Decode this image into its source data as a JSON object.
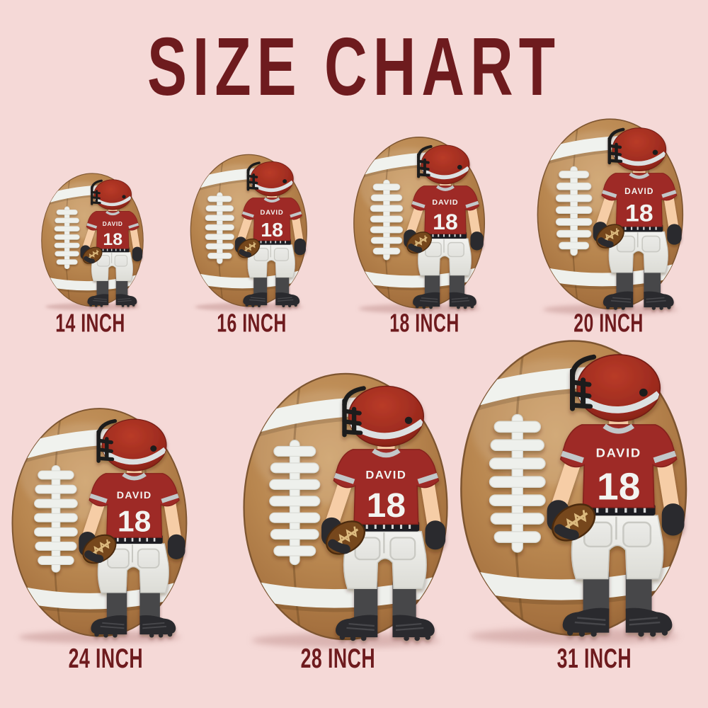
{
  "title": "SIZE CHART",
  "player": {
    "name": "DAVID",
    "number": "18"
  },
  "sizes": [
    {
      "id": "14-inch",
      "label": "14 INCH",
      "inches": 14,
      "row": 1
    },
    {
      "id": "16-inch",
      "label": "16 INCH",
      "inches": 16,
      "row": 1
    },
    {
      "id": "18-inch",
      "label": "18 INCH",
      "inches": 18,
      "row": 1
    },
    {
      "id": "20-inch",
      "label": "20 INCH",
      "inches": 20,
      "row": 1
    },
    {
      "id": "24-inch",
      "label": "24 INCH",
      "inches": 24,
      "row": 2
    },
    {
      "id": "28-inch",
      "label": "28 INCH",
      "inches": 28,
      "row": 2
    },
    {
      "id": "31-inch",
      "label": "31 INCH",
      "inches": 31,
      "row": 2
    }
  ],
  "colors": {
    "background": "#f5d9d7",
    "heading_text": "#6e1b1e",
    "ball_brown": "#b8864f",
    "stripe_lace_white": "#eef0ec",
    "jersey_red": "#9e2c27",
    "helmet_red": "#9c2a1e",
    "pants_white": "#ebebe7",
    "skin": "#f6cda6",
    "sock_gray": "#474749",
    "shoe_black": "#2c2c2f",
    "mini_football_brown": "#76471f"
  }
}
